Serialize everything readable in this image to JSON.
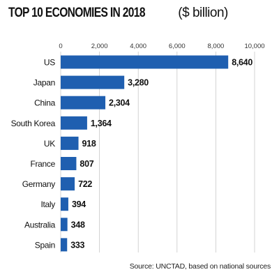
{
  "title": "TOP 10 ECONOMIES IN 2018",
  "title_unit": "($ billion)",
  "source": "Source: UNCTAD, based on national sources",
  "chart_data": {
    "type": "bar",
    "orientation": "horizontal",
    "title": "TOP 10 ECONOMIES IN 2018 ($ billion)",
    "categories": [
      "US",
      "Japan",
      "China",
      "South Korea",
      "UK",
      "France",
      "Germany",
      "Italy",
      "Australia",
      "Spain"
    ],
    "values": [
      8640,
      3280,
      2304,
      1364,
      918,
      807,
      722,
      394,
      348,
      333
    ],
    "value_labels": [
      "8,640",
      "3,280",
      "2,304",
      "1,364",
      "918",
      "807",
      "722",
      "394",
      "348",
      "333"
    ],
    "xlim": [
      0,
      10000
    ],
    "ticks": [
      0,
      2000,
      4000,
      6000,
      8000,
      10000
    ],
    "tick_labels": [
      "0",
      "2,000",
      "4,000",
      "6,000",
      "8,000",
      "10,000"
    ],
    "xlabel": "",
    "ylabel": "",
    "axis_position": "top",
    "grid": true,
    "legend": "none",
    "colors": {
      "bar": "#1f5fb0",
      "grid": "#c8c8c8",
      "text": "#111111"
    }
  }
}
